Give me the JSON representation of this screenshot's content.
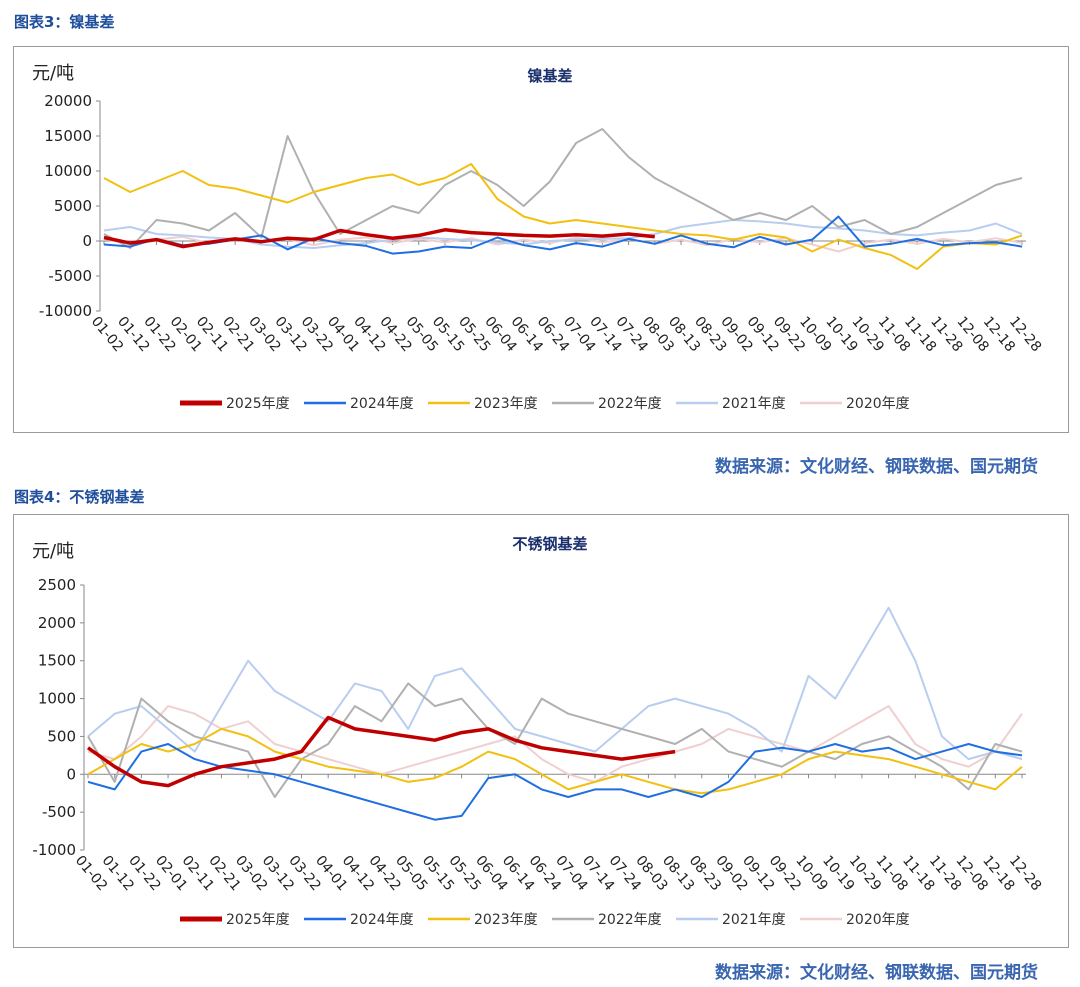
{
  "figure3": {
    "caption": "图表3：镍基差",
    "source": "数据来源：文化财经、钢联数据、国元期货"
  },
  "figure4": {
    "caption": "图表4：不锈钢基差",
    "source": "数据来源：文化财经、钢联数据、国元期货"
  },
  "colors": {
    "2025年度": "#c00000",
    "2024年度": "#1f6fe0",
    "2023年度": "#f2c010",
    "2022年度": "#b0b0b0",
    "2021年度": "#b8cdf0",
    "2020年度": "#f0cfd0"
  },
  "chart_data": [
    {
      "type": "line",
      "title": "镍基差",
      "ylabel": "元/吨",
      "ylim": [
        -10000,
        20000
      ],
      "yticks": [
        20000,
        15000,
        10000,
        5000,
        0,
        -5000,
        -10000
      ],
      "x": [
        "01-02",
        "01-12",
        "01-22",
        "02-01",
        "02-11",
        "02-21",
        "03-02",
        "03-12",
        "03-22",
        "04-01",
        "04-12",
        "04-22",
        "05-05",
        "05-15",
        "05-25",
        "06-04",
        "06-14",
        "06-24",
        "07-04",
        "07-14",
        "07-24",
        "08-03",
        "08-13",
        "08-23",
        "09-02",
        "09-12",
        "09-22",
        "10-09",
        "10-19",
        "10-29",
        "11-08",
        "11-18",
        "11-28",
        "12-08",
        "12-18",
        "12-28"
      ],
      "series": [
        {
          "name": "2025年度",
          "values": [
            500,
            -300,
            200,
            -800,
            -200,
            300,
            -100,
            400,
            200,
            1500,
            900,
            400,
            800,
            1600,
            1200,
            1000,
            800,
            700,
            900,
            700,
            1000,
            600,
            null,
            null,
            null,
            null,
            null,
            null,
            null,
            null,
            null,
            null,
            null,
            null,
            null,
            null
          ]
        },
        {
          "name": "2024年度",
          "values": [
            -500,
            -800,
            300,
            -600,
            -400,
            200,
            800,
            -1200,
            400,
            -300,
            -700,
            -1800,
            -1500,
            -800,
            -1000,
            500,
            -600,
            -1200,
            -300,
            -800,
            300,
            -400,
            800,
            -400,
            -900,
            600,
            -500,
            200,
            3500,
            -800,
            -400,
            300,
            -600,
            -300,
            -200,
            -800
          ]
        },
        {
          "name": "2023年度",
          "values": [
            9000,
            7000,
            8500,
            10000,
            8000,
            7500,
            6500,
            5500,
            7000,
            8000,
            9000,
            9500,
            8000,
            9000,
            11000,
            6000,
            3500,
            2500,
            3000,
            2500,
            2000,
            1500,
            1000,
            800,
            200,
            1000,
            500,
            -1500,
            200,
            -1000,
            -2000,
            -4000,
            -800,
            -300,
            -500,
            800
          ]
        },
        {
          "name": "2022年度",
          "values": [
            1000,
            -1000,
            3000,
            2500,
            1500,
            4000,
            500,
            15000,
            7000,
            1000,
            3000,
            5000,
            4000,
            8000,
            10000,
            8000,
            5000,
            8500,
            14000,
            16000,
            12000,
            9000,
            7000,
            5000,
            3000,
            4000,
            3000,
            5000,
            2000,
            3000,
            1000,
            2000,
            4000,
            6000,
            8000,
            9000
          ]
        },
        {
          "name": "2021年度",
          "values": [
            1500,
            2000,
            1000,
            800,
            500,
            300,
            -500,
            -800,
            -1000,
            -600,
            -300,
            200,
            500,
            300,
            100,
            -200,
            -500,
            0,
            200,
            300,
            400,
            1000,
            2000,
            2500,
            3000,
            2800,
            2500,
            2000,
            1800,
            1500,
            1000,
            800,
            1200,
            1500,
            2500,
            1000
          ]
        },
        {
          "name": "2020年度",
          "values": [
            300,
            -500,
            200,
            600,
            -300,
            400,
            -200,
            300,
            -600,
            200,
            500,
            -300,
            300,
            -200,
            400,
            -500,
            200,
            -300,
            500,
            -200,
            300,
            -400,
            200,
            -600,
            300,
            -200,
            400,
            -500,
            -1500,
            -300,
            200,
            -400,
            300,
            -200,
            400,
            -300
          ]
        }
      ],
      "legend": [
        "2025年度",
        "2024年度",
        "2023年度",
        "2022年度",
        "2021年度",
        "2020年度"
      ],
      "legend_position": "bottom",
      "grid": false
    },
    {
      "type": "line",
      "title": "不锈钢基差",
      "ylabel": "元/吨",
      "ylim": [
        -1000,
        2500
      ],
      "yticks": [
        2500,
        2000,
        1500,
        1000,
        500,
        0,
        -500,
        -1000
      ],
      "x": [
        "01-02",
        "01-12",
        "01-22",
        "02-01",
        "02-11",
        "02-21",
        "03-02",
        "03-12",
        "03-22",
        "04-01",
        "04-12",
        "04-22",
        "05-05",
        "05-15",
        "05-25",
        "06-04",
        "06-14",
        "06-24",
        "07-04",
        "07-14",
        "07-24",
        "08-03",
        "08-13",
        "08-23",
        "09-02",
        "09-12",
        "09-22",
        "10-09",
        "10-19",
        "10-29",
        "11-08",
        "11-18",
        "11-28",
        "12-08",
        "12-18",
        "12-28"
      ],
      "series": [
        {
          "name": "2025年度",
          "values": [
            350,
            100,
            -100,
            -150,
            0,
            100,
            150,
            200,
            300,
            750,
            600,
            550,
            500,
            450,
            550,
            600,
            450,
            350,
            300,
            250,
            200,
            250,
            300,
            null,
            null,
            null,
            null,
            null,
            null,
            null,
            null,
            null,
            null,
            null,
            null,
            null
          ]
        },
        {
          "name": "2024年度",
          "values": [
            -100,
            -200,
            300,
            400,
            200,
            100,
            50,
            0,
            -100,
            -200,
            -300,
            -400,
            -500,
            -600,
            -550,
            -50,
            0,
            -200,
            -300,
            -200,
            -200,
            -300,
            -200,
            -300,
            -100,
            300,
            350,
            300,
            400,
            300,
            350,
            200,
            300,
            400,
            300,
            250
          ]
        },
        {
          "name": "2023年度",
          "values": [
            0,
            200,
            400,
            300,
            400,
            600,
            500,
            300,
            200,
            100,
            50,
            0,
            -100,
            -50,
            100,
            300,
            200,
            0,
            -200,
            -100,
            0,
            -100,
            -200,
            -250,
            -200,
            -100,
            0,
            200,
            300,
            250,
            200,
            100,
            0,
            -100,
            -200,
            100
          ]
        },
        {
          "name": "2022年度",
          "values": [
            500,
            -100,
            1000,
            700,
            500,
            400,
            300,
            -300,
            200,
            400,
            900,
            700,
            1200,
            900,
            1000,
            600,
            400,
            1000,
            800,
            700,
            600,
            500,
            400,
            600,
            300,
            200,
            100,
            300,
            200,
            400,
            500,
            300,
            100,
            -200,
            400,
            300
          ]
        },
        {
          "name": "2021年度",
          "values": [
            500,
            800,
            900,
            600,
            300,
            900,
            1500,
            1100,
            900,
            700,
            1200,
            1100,
            600,
            1300,
            1400,
            1000,
            600,
            500,
            400,
            300,
            600,
            900,
            1000,
            900,
            800,
            600,
            300,
            1300,
            1000,
            1600,
            2200,
            1500,
            500,
            200,
            300,
            200
          ]
        },
        {
          "name": "2020年度",
          "values": [
            300,
            200,
            500,
            900,
            800,
            600,
            700,
            400,
            300,
            200,
            100,
            0,
            100,
            200,
            300,
            400,
            500,
            200,
            0,
            -100,
            100,
            200,
            300,
            400,
            600,
            500,
            400,
            300,
            500,
            700,
            900,
            400,
            200,
            100,
            300,
            800
          ]
        }
      ],
      "legend": [
        "2025年度",
        "2024年度",
        "2023年度",
        "2022年度",
        "2021年度",
        "2020年度"
      ],
      "legend_position": "bottom",
      "grid": false
    }
  ]
}
